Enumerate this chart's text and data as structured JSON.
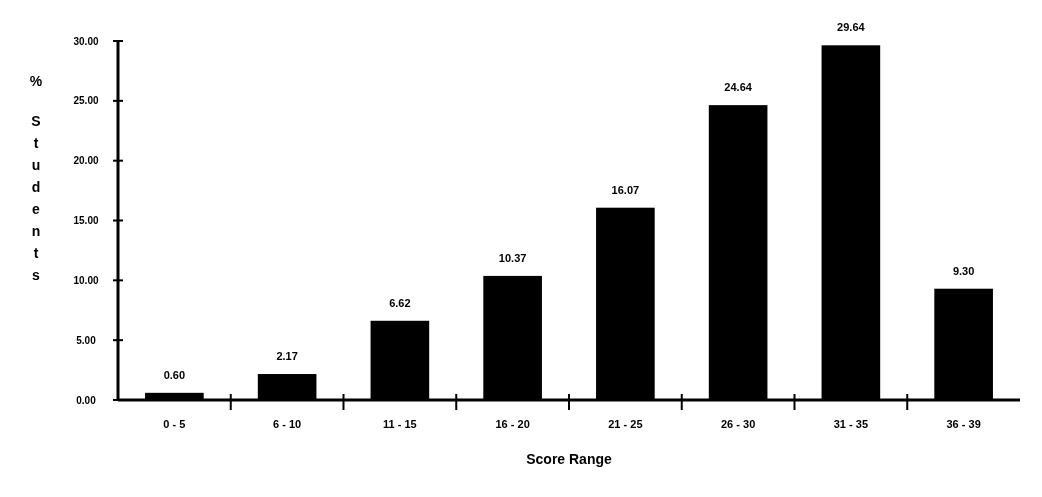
{
  "chart_data": {
    "type": "bar",
    "xlabel": "Score Range",
    "ylabel": "% Students",
    "categories": [
      "0 - 5",
      "6 - 10",
      "11 - 15",
      "16 - 20",
      "21 - 25",
      "26 - 30",
      "31 - 35",
      "36 - 39"
    ],
    "values": [
      0.6,
      2.17,
      6.62,
      10.37,
      16.07,
      24.64,
      29.64,
      9.3
    ],
    "value_labels": [
      "0.60",
      "2.17",
      "6.62",
      "10.37",
      "16.07",
      "24.64",
      "29.64",
      "9.30"
    ],
    "color": "#000000",
    "ylim": [
      0,
      30
    ],
    "yticks": [
      {
        "value": 0,
        "label": "0.00"
      },
      {
        "value": 5,
        "label": "5.00"
      },
      {
        "value": 10,
        "label": "10.00"
      },
      {
        "value": 15,
        "label": "15.00"
      },
      {
        "value": 20,
        "label": "20.00"
      },
      {
        "value": 25,
        "label": "25.00"
      },
      {
        "value": 30,
        "label": "30.00"
      }
    ]
  }
}
